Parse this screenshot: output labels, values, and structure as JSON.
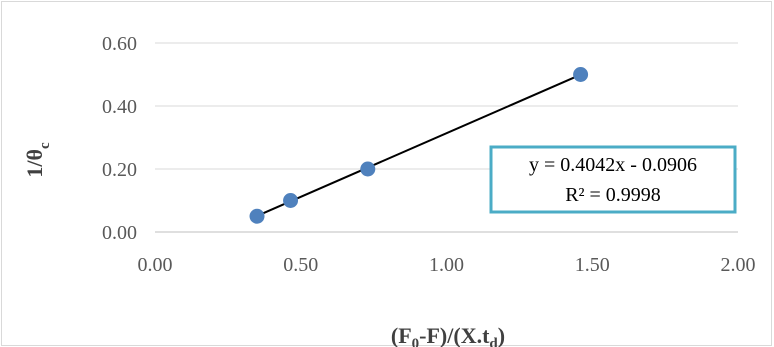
{
  "chart_data": {
    "type": "scatter",
    "x": [
      0.35,
      0.465,
      0.73,
      1.46
    ],
    "y": [
      0.05,
      0.1,
      0.2,
      0.5
    ],
    "xlim": [
      0,
      2.0
    ],
    "ylim": [
      0,
      0.6
    ],
    "x_ticks": [
      "0.00",
      "0.50",
      "1.00",
      "1.50",
      "2.00"
    ],
    "y_ticks": [
      "0.00",
      "0.20",
      "0.40",
      "0.60"
    ],
    "grid": "horizontal",
    "xlabel": {
      "main": "(F",
      "sub1": "0",
      "mid": "-F)/(X.t",
      "sub2": "d",
      "end": ")"
    },
    "ylabel": {
      "main": "1/θ",
      "sub": "c"
    },
    "trendline": {
      "type": "linear",
      "slope": 0.4042,
      "intercept": -0.0906,
      "equation": "y = 0.4042x - 0.0906",
      "r_squared": "R² = 0.9998",
      "x_range": [
        0.35,
        1.46
      ]
    },
    "colors": {
      "marker": "#4f81bd",
      "trendline": "#000000",
      "gridline": "#d9d9d9",
      "equation_border": "#4bacc6"
    }
  }
}
